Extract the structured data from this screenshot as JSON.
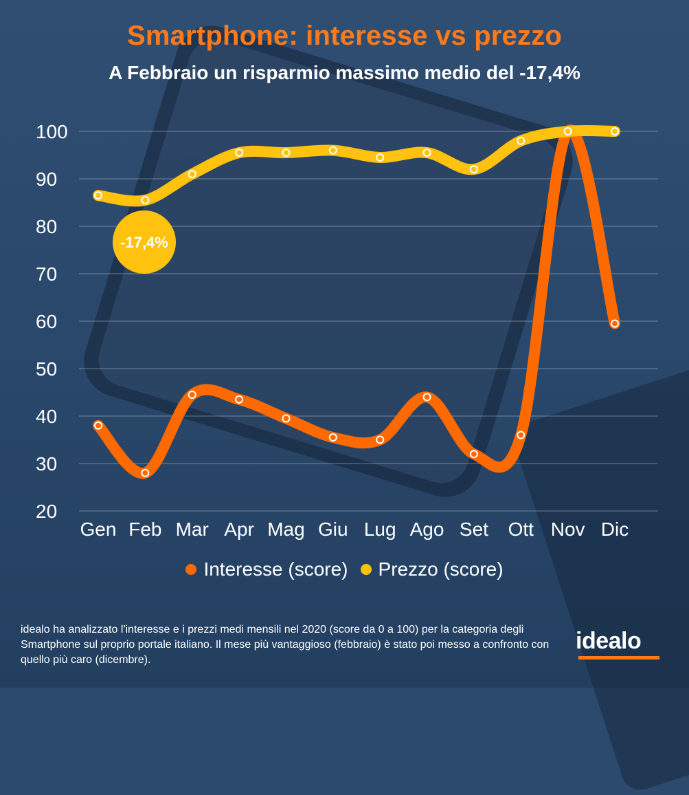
{
  "title": "Smartphone: interesse vs prezzo",
  "subtitle": "A Febbraio un risparmio massimo medio del -17,4%",
  "callout": "-17,4%",
  "footnote": "idealo ha analizzato l'interesse e i prezzi medi mensili nel 2020 (score da 0 a 100) per la categoria degli Smartphone sul proprio portale italiano. Il mese più vantaggioso (febbraio) è stato poi messo a confronto con quello più caro (dicembre).",
  "logo": "idealo",
  "colors": {
    "interesse": "#ff6a00",
    "prezzo": "#ffc20e",
    "title": "#ff7a1a",
    "background": "#2c4a6e"
  },
  "chart_data": {
    "type": "line",
    "categories": [
      "Gen",
      "Feb",
      "Mar",
      "Apr",
      "Mag",
      "Giu",
      "Lug",
      "Ago",
      "Set",
      "Ott",
      "Nov",
      "Dic"
    ],
    "series": [
      {
        "name": "Interesse (score)",
        "values": [
          38,
          28,
          44.5,
          43.5,
          39.5,
          35.5,
          35,
          44,
          32,
          36,
          100,
          59.5
        ]
      },
      {
        "name": "Prezzo (score)",
        "values": [
          86.5,
          85.5,
          91,
          95.5,
          95.5,
          96,
          94.5,
          95.5,
          92,
          98,
          100,
          100
        ]
      }
    ],
    "yticks": [
      20,
      30,
      40,
      50,
      60,
      70,
      80,
      90,
      100
    ],
    "ylim": [
      20,
      100
    ],
    "grid": true,
    "legend": "bottom-center"
  }
}
